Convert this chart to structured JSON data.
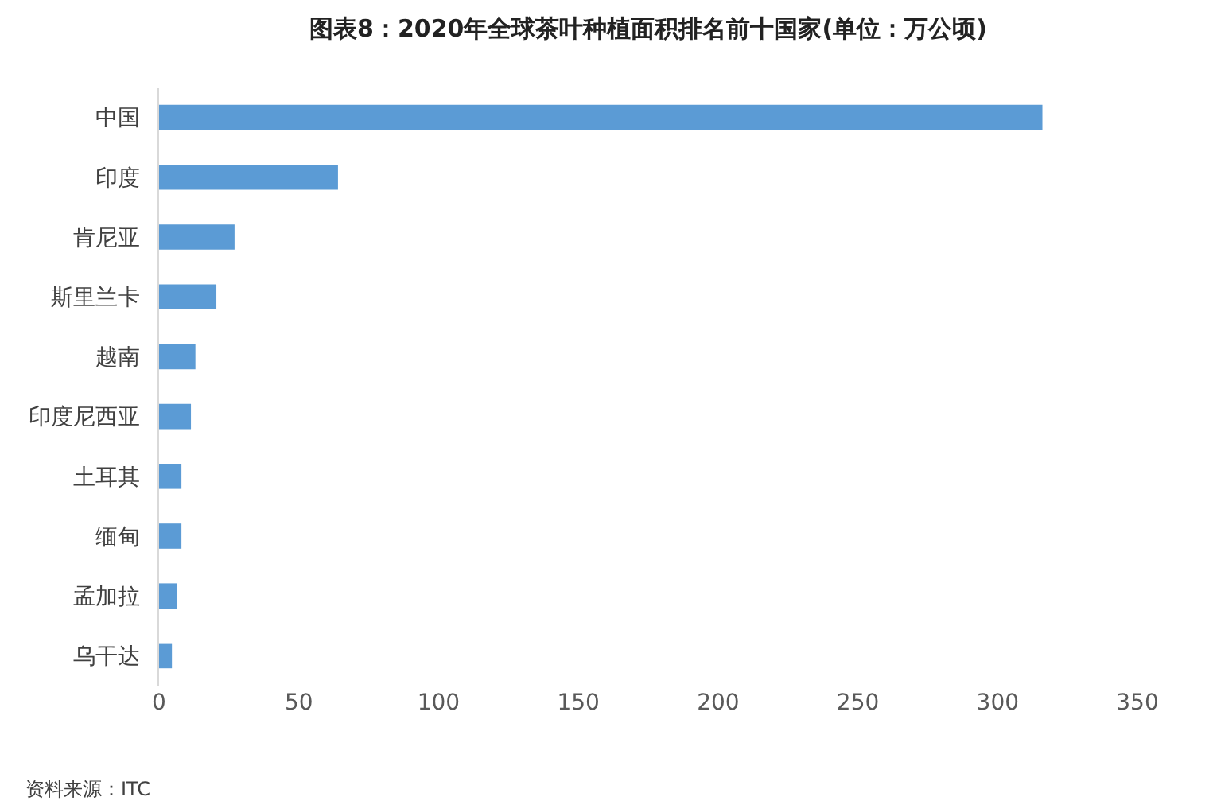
{
  "chart_data": {
    "type": "bar",
    "orientation": "horizontal",
    "title": "图表8：2020年全球茶叶种植面积排名前十国家(单位：万公顷)",
    "categories": [
      "中国",
      "印度",
      "肯尼亚",
      "斯里兰卡",
      "越南",
      "印度尼西亚",
      "土耳其",
      "缅甸",
      "孟加拉",
      "乌干达"
    ],
    "values": [
      316,
      64,
      27,
      20.5,
      13,
      11.4,
      8,
      8,
      6.3,
      4.6
    ],
    "color": "#5b9bd5",
    "xlim": [
      0,
      350
    ],
    "xticks": [
      0,
      50,
      100,
      150,
      200,
      250,
      300,
      350
    ],
    "grid": false,
    "annotations": [
      "资料来源：ITC"
    ]
  }
}
